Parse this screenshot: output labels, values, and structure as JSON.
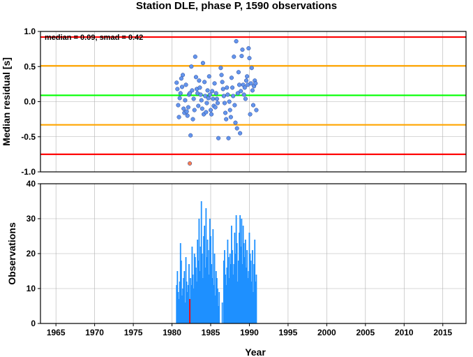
{
  "chart_data": [
    {
      "type": "scatter",
      "title": "Station DLE, phase P, 1590 observations",
      "xlabel": "",
      "ylabel": "Median residual [s]",
      "xlim": [
        1963,
        2018
      ],
      "ylim": [
        -1.0,
        1.0
      ],
      "yticks": [
        "1.0",
        "0.5",
        "0.0",
        "-0.5",
        "-1.0"
      ],
      "annotation": "median = 0.09, smad = 0.42",
      "grid": true,
      "reference_lines": [
        {
          "y": 0.92,
          "color": "#ff0000"
        },
        {
          "y": 0.51,
          "color": "#ffa500"
        },
        {
          "y": 0.09,
          "color": "#00ff00"
        },
        {
          "y": -0.33,
          "color": "#ffa500"
        },
        {
          "y": -0.75,
          "color": "#ff0000"
        }
      ],
      "series": [
        {
          "color": "#6495ed",
          "points": [
            [
              1980.6,
              0.27
            ],
            [
              1980.7,
              0.18
            ],
            [
              1980.8,
              -0.05
            ],
            [
              1980.9,
              -0.22
            ],
            [
              1981.0,
              0.05
            ],
            [
              1981.1,
              0.12
            ],
            [
              1981.2,
              0.33
            ],
            [
              1981.3,
              0.21
            ],
            [
              1981.4,
              0.38
            ],
            [
              1981.5,
              -0.1
            ],
            [
              1981.6,
              -0.16
            ],
            [
              1981.7,
              0.02
            ],
            [
              1981.8,
              0.24
            ],
            [
              1981.9,
              -0.14
            ],
            [
              1982.0,
              -0.2
            ],
            [
              1982.1,
              -0.08
            ],
            [
              1982.2,
              0.1
            ],
            [
              1982.3,
              0.12
            ],
            [
              1982.4,
              -0.48
            ],
            [
              1982.5,
              0.5
            ],
            [
              1982.6,
              0.16
            ],
            [
              1982.7,
              -0.25
            ],
            [
              1982.8,
              0.04
            ],
            [
              1982.9,
              -0.12
            ],
            [
              1983.0,
              0.64
            ],
            [
              1983.1,
              0.35
            ],
            [
              1983.2,
              0.18
            ],
            [
              1983.3,
              0.12
            ],
            [
              1983.4,
              -0.06
            ],
            [
              1983.5,
              0.3
            ],
            [
              1983.6,
              0.2
            ],
            [
              1983.7,
              0.1
            ],
            [
              1983.8,
              0.02
            ],
            [
              1983.9,
              -0.1
            ],
            [
              1984.0,
              0.55
            ],
            [
              1984.1,
              -0.18
            ],
            [
              1984.2,
              0.28
            ],
            [
              1984.3,
              0.08
            ],
            [
              1984.4,
              -0.15
            ],
            [
              1984.5,
              -0.02
            ],
            [
              1984.6,
              0.16
            ],
            [
              1984.7,
              0.05
            ],
            [
              1984.8,
              0.36
            ],
            [
              1984.9,
              0.1
            ],
            [
              1985.0,
              -0.12
            ],
            [
              1985.1,
              -0.18
            ],
            [
              1985.2,
              0.15
            ],
            [
              1985.3,
              0.04
            ],
            [
              1985.4,
              -0.06
            ],
            [
              1985.5,
              0.26
            ],
            [
              1985.6,
              -0.08
            ],
            [
              1985.7,
              0.12
            ],
            [
              1985.8,
              0.04
            ],
            [
              1985.9,
              -0.02
            ],
            [
              1986.0,
              -0.52
            ],
            [
              1986.3,
              0.48
            ],
            [
              1986.4,
              0.38
            ],
            [
              1986.5,
              0.28
            ],
            [
              1986.6,
              0.18
            ],
            [
              1986.7,
              0.08
            ],
            [
              1986.8,
              -0.02
            ],
            [
              1986.9,
              -0.16
            ],
            [
              1987.0,
              -0.25
            ],
            [
              1987.1,
              0.2
            ],
            [
              1987.2,
              0.1
            ],
            [
              1987.3,
              -0.52
            ],
            [
              1987.4,
              0.0
            ],
            [
              1987.5,
              -0.12
            ],
            [
              1987.6,
              -0.22
            ],
            [
              1987.7,
              0.34
            ],
            [
              1987.8,
              0.2
            ],
            [
              1987.9,
              0.08
            ],
            [
              1988.0,
              0.64
            ],
            [
              1988.1,
              -0.05
            ],
            [
              1988.2,
              -0.3
            ],
            [
              1988.3,
              0.86
            ],
            [
              1988.4,
              -0.38
            ],
            [
              1988.5,
              0.12
            ],
            [
              1988.6,
              0.42
            ],
            [
              1988.7,
              0.24
            ],
            [
              1988.8,
              -0.45
            ],
            [
              1988.9,
              0.15
            ],
            [
              1989.0,
              0.65
            ],
            [
              1989.1,
              0.74
            ],
            [
              1989.2,
              0.24
            ],
            [
              1989.3,
              0.1
            ],
            [
              1989.4,
              0.2
            ],
            [
              1989.5,
              0.04
            ],
            [
              1989.6,
              0.3
            ],
            [
              1989.7,
              0.36
            ],
            [
              1989.8,
              0.24
            ],
            [
              1989.9,
              0.76
            ],
            [
              1990.0,
              0.62
            ],
            [
              1990.1,
              -0.18
            ],
            [
              1990.2,
              0.26
            ],
            [
              1990.3,
              0.48
            ],
            [
              1990.4,
              0.16
            ],
            [
              1990.5,
              -0.05
            ],
            [
              1990.6,
              0.22
            ],
            [
              1990.7,
              0.3
            ],
            [
              1990.8,
              0.26
            ],
            [
              1990.9,
              -0.12
            ]
          ]
        },
        {
          "color": "#ff7f50",
          "points": [
            [
              1982.3,
              -0.88
            ]
          ]
        }
      ]
    },
    {
      "type": "bar",
      "title": "",
      "xlabel": "Year",
      "ylabel": "Observations",
      "xlim": [
        1963,
        2018
      ],
      "ylim": [
        0,
        40
      ],
      "yticks": [
        "40",
        "30",
        "20",
        "10",
        "0"
      ],
      "xticks": [
        "1965",
        "1970",
        "1975",
        "1980",
        "1985",
        "1990",
        "1995",
        "2000",
        "2005",
        "2010",
        "2015"
      ],
      "grid": true,
      "series": [
        {
          "color": "#1e90ff",
          "x": [
            1980.6,
            1980.7,
            1980.8,
            1980.9,
            1981.0,
            1981.1,
            1981.2,
            1981.3,
            1981.4,
            1981.5,
            1981.6,
            1981.7,
            1981.8,
            1981.9,
            1982.0,
            1982.1,
            1982.2,
            1982.4,
            1982.5,
            1982.6,
            1982.7,
            1982.8,
            1982.9,
            1983.0,
            1983.1,
            1983.2,
            1983.3,
            1983.4,
            1983.5,
            1983.6,
            1983.7,
            1983.8,
            1983.9,
            1984.0,
            1984.1,
            1984.2,
            1984.3,
            1984.4,
            1984.5,
            1984.6,
            1984.7,
            1984.8,
            1984.9,
            1985.0,
            1985.1,
            1985.2,
            1985.3,
            1985.4,
            1985.5,
            1985.6,
            1985.7,
            1985.8,
            1985.9,
            1986.0,
            1986.1,
            1986.5,
            1986.7,
            1986.8,
            1986.9,
            1987.0,
            1987.1,
            1987.2,
            1987.3,
            1987.4,
            1987.5,
            1987.6,
            1987.7,
            1987.8,
            1987.9,
            1988.0,
            1988.1,
            1988.2,
            1988.3,
            1988.4,
            1988.5,
            1988.6,
            1988.7,
            1988.8,
            1988.9,
            1989.0,
            1989.1,
            1989.2,
            1989.3,
            1989.4,
            1989.5,
            1989.6,
            1989.7,
            1989.8,
            1989.9,
            1990.0,
            1990.1,
            1990.2,
            1990.3,
            1990.4,
            1990.5,
            1990.6,
            1990.7,
            1990.8,
            1990.9
          ],
          "values": [
            11,
            15,
            9,
            7,
            12,
            23,
            18,
            8,
            10,
            13,
            15,
            6,
            19,
            12,
            9,
            11,
            17,
            13,
            11,
            22,
            14,
            10,
            20,
            19,
            16,
            12,
            24,
            18,
            30,
            15,
            22,
            35,
            20,
            13,
            25,
            28,
            16,
            33,
            19,
            24,
            21,
            14,
            30,
            25,
            17,
            13,
            27,
            11,
            20,
            8,
            15,
            13,
            10,
            5,
            9,
            6,
            18,
            21,
            14,
            11,
            16,
            24,
            19,
            13,
            20,
            17,
            28,
            21,
            14,
            17,
            26,
            20,
            31,
            23,
            12,
            18,
            26,
            31,
            22,
            30,
            17,
            28,
            23,
            19,
            24,
            16,
            21,
            13,
            15,
            26,
            20,
            18,
            12,
            21,
            9,
            17,
            24,
            12,
            14
          ]
        },
        {
          "color": "#ff0000",
          "x": [
            1982.3
          ],
          "values": [
            7
          ]
        }
      ]
    }
  ]
}
